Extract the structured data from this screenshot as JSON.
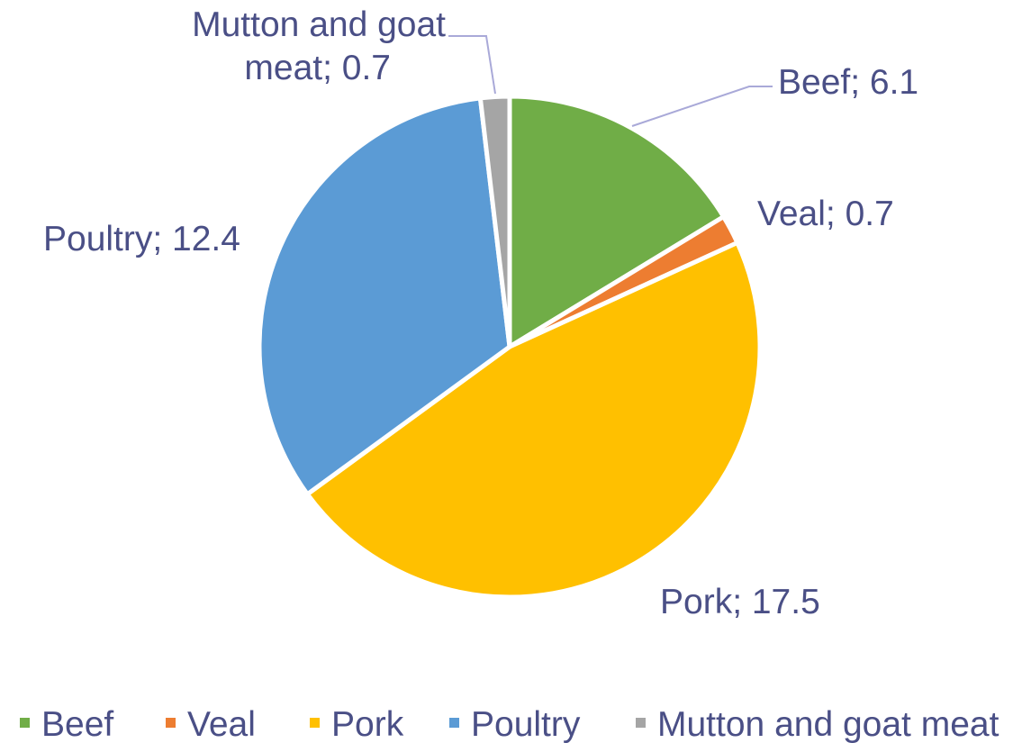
{
  "chart_data": {
    "type": "pie",
    "slices": [
      {
        "name": "Beef",
        "value": 6.1,
        "color": "#70ad47",
        "label": "Beef; 6.1"
      },
      {
        "name": "Veal",
        "value": 0.7,
        "color": "#ed7d31",
        "label": "Veal; 0.7"
      },
      {
        "name": "Pork",
        "value": 17.5,
        "color": "#ffc000",
        "label": "Pork; 17.5"
      },
      {
        "name": "Poultry",
        "value": 12.4,
        "color": "#5b9bd5",
        "label": "Poultry; 12.4"
      },
      {
        "name": "Mutton and goat meat",
        "value": 0.7,
        "color": "#a5a5a5",
        "label_lines": [
          "Mutton and goat",
          "meat; 0.7"
        ]
      }
    ],
    "legend": {
      "position": "bottom",
      "entries": [
        "Beef",
        "Veal",
        "Pork",
        "Poultry",
        "Mutton and goat meat"
      ]
    },
    "start_angle": "12 o'clock",
    "direction": "clockwise"
  }
}
